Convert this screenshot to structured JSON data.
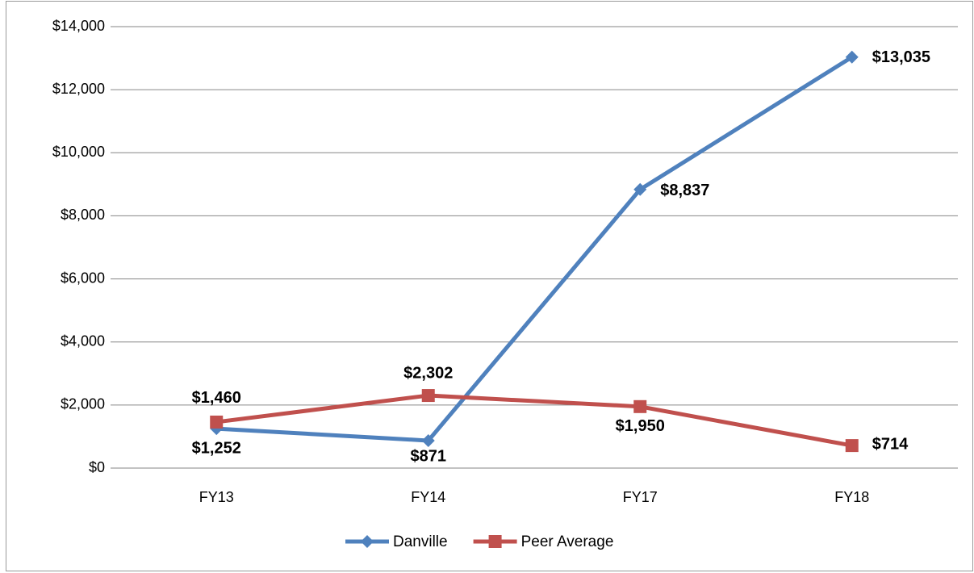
{
  "chart_data": {
    "type": "line",
    "categories": [
      "FY13",
      "FY14",
      "FY17",
      "FY18"
    ],
    "series": [
      {
        "name": "Danville",
        "color": "#4f81bd",
        "marker": "diamond",
        "values": [
          1252,
          871,
          8837,
          13035
        ],
        "value_labels": [
          "$1,252",
          "$871",
          "$8,837",
          "$13,035"
        ]
      },
      {
        "name": "Peer Average",
        "color": "#c0504d",
        "marker": "square",
        "values": [
          1460,
          2302,
          1950,
          714
        ],
        "value_labels": [
          "$1,460",
          "$2,302",
          "$1,950",
          "$714"
        ]
      }
    ],
    "ylim": [
      0,
      14000
    ],
    "yticks": [
      {
        "value": 0,
        "label": "$0"
      },
      {
        "value": 2000,
        "label": "$2,000"
      },
      {
        "value": 4000,
        "label": "$4,000"
      },
      {
        "value": 6000,
        "label": "$6,000"
      },
      {
        "value": 8000,
        "label": "$8,000"
      },
      {
        "value": 10000,
        "label": "$10,000"
      },
      {
        "value": 12000,
        "label": "$12,000"
      },
      {
        "value": 14000,
        "label": "$14,000"
      }
    ],
    "grid": true,
    "legend": "bottom"
  }
}
